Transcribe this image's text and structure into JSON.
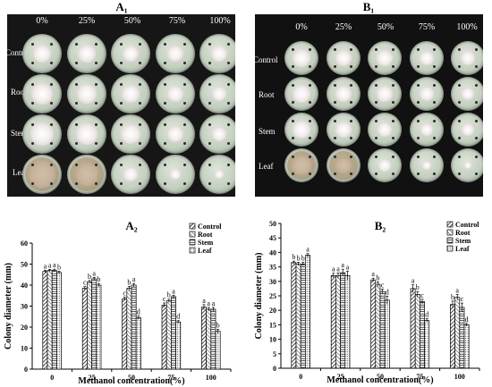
{
  "panels": {
    "a1": "A₁",
    "b1": "B₁",
    "a2": "A₂",
    "b2": "B₂"
  },
  "photo_a": {
    "columns": [
      "0%",
      "25%",
      "50%",
      "75%",
      "100%"
    ],
    "rows": [
      "Control",
      "Root",
      "Stem",
      "Leaf"
    ]
  },
  "photo_b": {
    "columns": [
      "0%",
      "25%",
      "50%",
      "75%",
      "100%"
    ],
    "rows": [
      "Control",
      "Root",
      "Stem",
      "Leaf"
    ]
  },
  "chart_data": [
    {
      "type": "bar",
      "title": "A₂",
      "categories": [
        "0",
        "25",
        "50",
        "75",
        "100"
      ],
      "xlabel": "Methanol concentration(%)",
      "ylabel": "Colony diameter (mm)",
      "ylim": [
        0,
        60
      ],
      "yticks": [
        0,
        10,
        20,
        30,
        40,
        50,
        60
      ],
      "legend": "top-right",
      "grid": false,
      "series": [
        {
          "name": "Control",
          "values": [
            46.5,
            38.5,
            33.5,
            30.5,
            29.5
          ],
          "errors": [
            0.6,
            0.8,
            0.8,
            1.0,
            1.2
          ],
          "letters": [
            "a",
            "c",
            "c",
            "c",
            "a"
          ]
        },
        {
          "name": "Root",
          "values": [
            47.0,
            41.5,
            38.5,
            32.5,
            28.5
          ],
          "errors": [
            0.5,
            0.7,
            0.9,
            0.8,
            0.9
          ],
          "letters": [
            "a",
            "b",
            "b",
            "b",
            "a"
          ]
        },
        {
          "name": "Stem",
          "values": [
            47.0,
            43.0,
            40.0,
            34.5,
            28.5
          ],
          "errors": [
            0.6,
            0.7,
            0.8,
            0.7,
            0.9
          ],
          "letters": [
            "a",
            "a",
            "a",
            "a",
            "a"
          ]
        },
        {
          "name": "Leaf",
          "values": [
            46.0,
            40.0,
            24.5,
            22.5,
            18.0
          ],
          "errors": [
            0.6,
            0.8,
            0.8,
            0.6,
            1.0
          ],
          "letters": [
            "b",
            "b",
            "d",
            "d",
            "b"
          ]
        }
      ]
    },
    {
      "type": "bar",
      "title": "B₂",
      "categories": [
        "0",
        "25",
        "50",
        "75",
        "100"
      ],
      "xlabel": "Methanol concentration(%)",
      "ylabel": "Colony diameter (mm)",
      "ylim": [
        0,
        50
      ],
      "yticks": [
        0,
        5,
        10,
        15,
        20,
        25,
        30,
        35,
        40,
        45,
        50
      ],
      "legend": "top-right",
      "grid": false,
      "series": [
        {
          "name": "Control",
          "values": [
            36.5,
            32.0,
            30.5,
            27.5,
            22.0
          ],
          "errors": [
            0.5,
            0.8,
            0.6,
            1.3,
            1.2
          ],
          "letters": [
            "b",
            "a",
            "a",
            "a",
            "b"
          ]
        },
        {
          "name": "Root",
          "values": [
            36.0,
            32.0,
            29.0,
            25.5,
            24.5
          ],
          "errors": [
            0.6,
            0.9,
            0.8,
            1.0,
            1.0
          ],
          "letters": [
            "b",
            "a",
            "b",
            "b",
            "a"
          ]
        },
        {
          "name": "Stem",
          "values": [
            36.0,
            33.0,
            26.5,
            23.0,
            21.0
          ],
          "errors": [
            0.6,
            1.2,
            0.8,
            0.8,
            1.5
          ],
          "letters": [
            "b",
            "a",
            "c",
            "c",
            "c"
          ]
        },
        {
          "name": "Leaf",
          "values": [
            39.0,
            32.0,
            23.5,
            16.5,
            15.0
          ],
          "errors": [
            0.6,
            1.5,
            1.4,
            0.6,
            0.5
          ],
          "letters": [
            "a",
            "a",
            "d",
            "d",
            "d"
          ]
        }
      ]
    }
  ]
}
